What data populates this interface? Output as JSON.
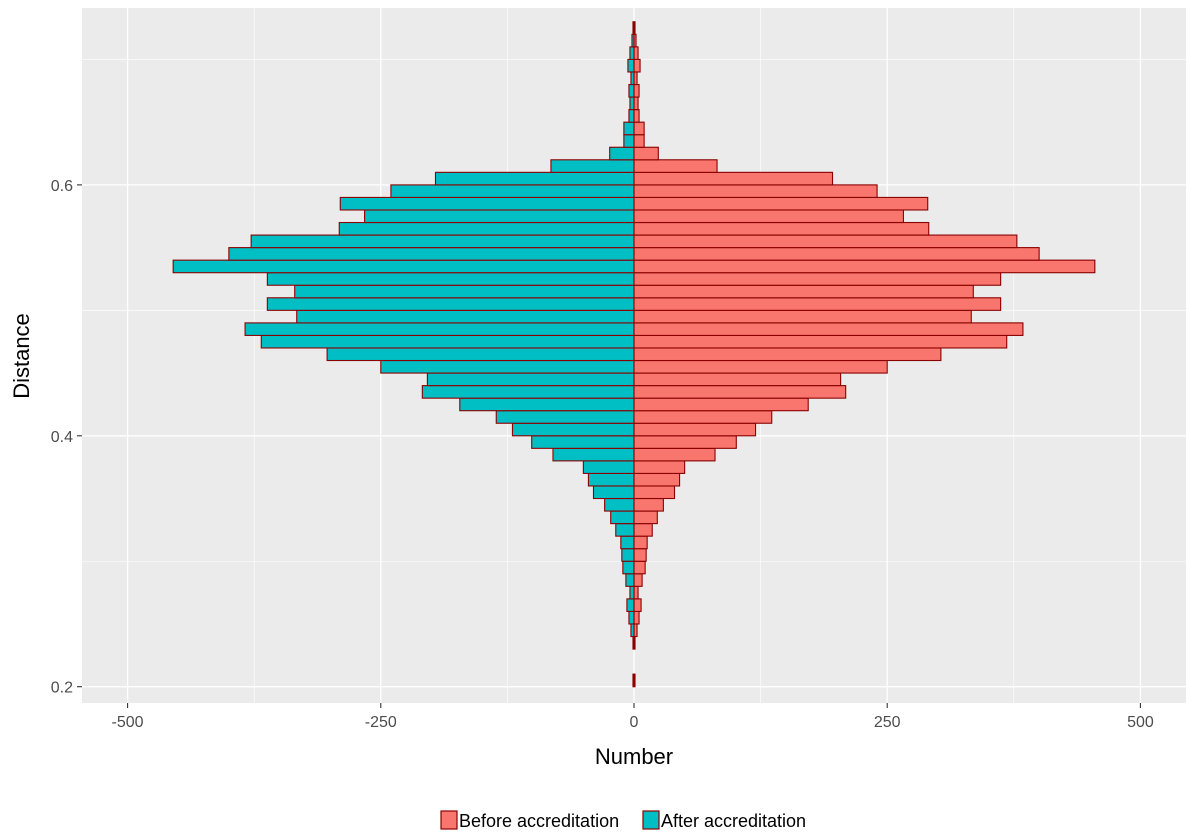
{
  "chart_data": {
    "type": "bar",
    "orientation": "horizontal-diverging",
    "xlabel": "Number",
    "ylabel": "Distance",
    "xlim": [
      -545,
      545
    ],
    "ylim": [
      0.187,
      0.741
    ],
    "xticks": [
      -500,
      -250,
      0,
      250,
      500
    ],
    "xtick_labels": [
      "-500",
      "-250",
      "0",
      "250",
      "500"
    ],
    "yticks": [
      0.2,
      0.4,
      0.6
    ],
    "ytick_labels": [
      "0.2",
      "0.4",
      "0.6"
    ],
    "bin_width": 0.01,
    "grid": true,
    "legend_position": "bottom",
    "colors": {
      "panel": "#ebebeb",
      "grid": "#ffffff",
      "bar_outline": "#8b0000",
      "before": "#f8766d",
      "after": "#00bfc4"
    },
    "series": [
      {
        "name": "Before accreditation",
        "y": [
          0.205,
          0.235,
          0.245,
          0.255,
          0.265,
          0.275,
          0.285,
          0.295,
          0.305,
          0.315,
          0.325,
          0.335,
          0.345,
          0.355,
          0.365,
          0.375,
          0.385,
          0.395,
          0.405,
          0.415,
          0.425,
          0.435,
          0.445,
          0.455,
          0.465,
          0.475,
          0.485,
          0.495,
          0.505,
          0.515,
          0.525,
          0.535,
          0.545,
          0.555,
          0.565,
          0.575,
          0.585,
          0.595,
          0.605,
          0.615,
          0.625,
          0.635,
          0.645,
          0.655,
          0.665,
          0.675,
          0.685,
          0.695,
          0.705,
          0.715,
          0.725
        ],
        "values": [
          1,
          1,
          3,
          5,
          7,
          4,
          8,
          11,
          12,
          13,
          18,
          23,
          29,
          40,
          45,
          50,
          80,
          101,
          120,
          136,
          172,
          209,
          204,
          250,
          303,
          368,
          384,
          333,
          362,
          335,
          362,
          455,
          400,
          378,
          291,
          266,
          290,
          240,
          196,
          82,
          24,
          10,
          10,
          5,
          4,
          5,
          3,
          6,
          4,
          2,
          1
        ]
      },
      {
        "name": "After accreditation",
        "y": [
          0.205,
          0.235,
          0.245,
          0.255,
          0.265,
          0.275,
          0.285,
          0.295,
          0.305,
          0.315,
          0.325,
          0.335,
          0.345,
          0.355,
          0.365,
          0.375,
          0.385,
          0.395,
          0.405,
          0.415,
          0.425,
          0.435,
          0.445,
          0.455,
          0.465,
          0.475,
          0.485,
          0.495,
          0.505,
          0.515,
          0.525,
          0.535,
          0.545,
          0.555,
          0.565,
          0.575,
          0.585,
          0.595,
          0.605,
          0.615,
          0.625,
          0.635,
          0.645,
          0.655,
          0.665,
          0.675,
          0.685,
          0.695,
          0.705,
          0.715,
          0.725
        ],
        "values": [
          1,
          1,
          3,
          5,
          7,
          4,
          8,
          11,
          12,
          13,
          18,
          23,
          29,
          40,
          45,
          50,
          80,
          101,
          120,
          136,
          172,
          209,
          204,
          250,
          303,
          368,
          384,
          333,
          362,
          335,
          362,
          455,
          400,
          378,
          291,
          266,
          290,
          240,
          196,
          82,
          24,
          10,
          10,
          5,
          4,
          5,
          3,
          6,
          4,
          2,
          1
        ]
      }
    ]
  }
}
